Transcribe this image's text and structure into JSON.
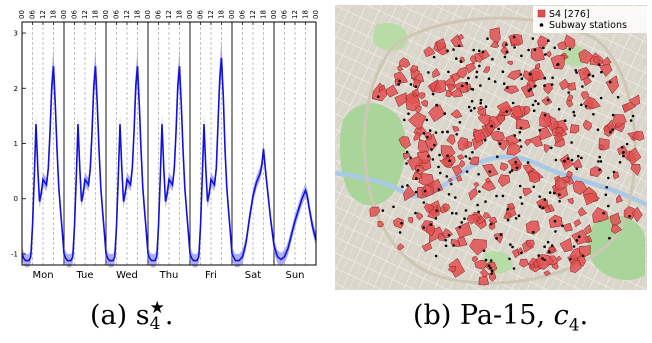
{
  "chart_data": [
    {
      "type": "line",
      "title": "",
      "xlabel": "",
      "ylabel": "",
      "ylim": [
        -1.2,
        3.2
      ],
      "yticks": [
        -1,
        0,
        1,
        2,
        3
      ],
      "days": [
        "Mon",
        "Tue",
        "Wed",
        "Thu",
        "Fri",
        "Sat",
        "Sun"
      ],
      "hour_ticks": [
        "00",
        "06",
        "12",
        "18"
      ],
      "last_hour_tick": "00",
      "hourly_grid_dashed": true,
      "weekday_profile": [
        {
          "h": 0,
          "v": -1.0
        },
        {
          "h": 1,
          "v": -1.08
        },
        {
          "h": 2,
          "v": -1.12
        },
        {
          "h": 3,
          "v": -1.12
        },
        {
          "h": 4,
          "v": -1.12
        },
        {
          "h": 5,
          "v": -1.05
        },
        {
          "h": 6,
          "v": -0.5
        },
        {
          "h": 7,
          "v": 0.4
        },
        {
          "h": 8,
          "v": 1.35
        },
        {
          "h": 9,
          "v": 0.55
        },
        {
          "h": 10,
          "v": -0.05
        },
        {
          "h": 11,
          "v": 0.1
        },
        {
          "h": 12,
          "v": 0.35
        },
        {
          "h": 13,
          "v": 0.3
        },
        {
          "h": 14,
          "v": 0.25
        },
        {
          "h": 15,
          "v": 0.55
        },
        {
          "h": 16,
          "v": 1.2
        },
        {
          "h": 17,
          "v": 2.05
        },
        {
          "h": 18,
          "v": 2.4
        },
        {
          "h": 19,
          "v": 1.7
        },
        {
          "h": 20,
          "v": 0.9
        },
        {
          "h": 21,
          "v": 0.2
        },
        {
          "h": 22,
          "v": -0.2
        },
        {
          "h": 23,
          "v": -0.6
        },
        {
          "h": 24,
          "v": -1.0
        }
      ],
      "friday_peak_offset": 0.15,
      "saturday_profile": [
        {
          "h": 0,
          "v": -1.0
        },
        {
          "h": 2,
          "v": -1.12
        },
        {
          "h": 4,
          "v": -1.12
        },
        {
          "h": 6,
          "v": -1.05
        },
        {
          "h": 8,
          "v": -0.8
        },
        {
          "h": 10,
          "v": -0.35
        },
        {
          "h": 12,
          "v": 0.05
        },
        {
          "h": 14,
          "v": 0.3
        },
        {
          "h": 16,
          "v": 0.45
        },
        {
          "h": 17,
          "v": 0.6
        },
        {
          "h": 18,
          "v": 0.9
        },
        {
          "h": 19,
          "v": 0.55
        },
        {
          "h": 20,
          "v": 0.25
        },
        {
          "h": 22,
          "v": -0.35
        },
        {
          "h": 24,
          "v": -0.85
        }
      ],
      "sunday_profile": [
        {
          "h": 0,
          "v": -0.85
        },
        {
          "h": 2,
          "v": -1.05
        },
        {
          "h": 4,
          "v": -1.1
        },
        {
          "h": 6,
          "v": -1.05
        },
        {
          "h": 8,
          "v": -0.9
        },
        {
          "h": 10,
          "v": -0.65
        },
        {
          "h": 12,
          "v": -0.4
        },
        {
          "h": 14,
          "v": -0.2
        },
        {
          "h": 16,
          "v": 0.0
        },
        {
          "h": 18,
          "v": 0.15
        },
        {
          "h": 19,
          "v": 0.05
        },
        {
          "h": 20,
          "v": -0.15
        },
        {
          "h": 22,
          "v": -0.5
        },
        {
          "h": 24,
          "v": -0.75
        }
      ],
      "band_halfwidth": 0.12,
      "band_peak_extra": 0.18,
      "series_color": "#1010e0",
      "band_color": "#8a8af0"
    },
    {
      "type": "scatter",
      "legend": {
        "placement": "top-right",
        "entries": [
          {
            "label": "S4 [276]",
            "marker": "square",
            "color": "#e05050"
          },
          {
            "label": "Subway stations",
            "marker": "dot",
            "color": "#000000"
          }
        ]
      },
      "region_color": "#e05050",
      "station_color": "#000000",
      "region_count": 276
    }
  ],
  "captions": {
    "a_prefix": "(a) s",
    "a_sub": "4",
    "a_sup": "★",
    "a_suffix": ".",
    "b_prefix": "(b) Pa-15, ",
    "b_var": "c",
    "b_sub": "4",
    "b_suffix": "."
  }
}
